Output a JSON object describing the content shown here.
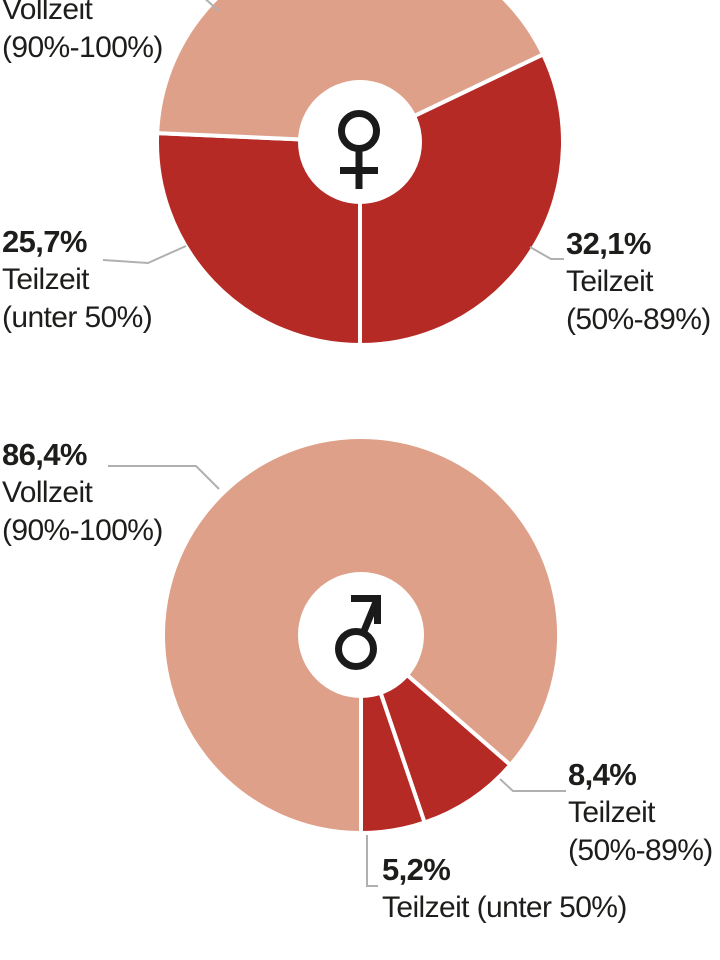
{
  "language": "de",
  "colors": {
    "vollzeit_fill": "#dfa08a",
    "teilzeit_fill": "#b62a25",
    "slice_divider": "#ffffff",
    "leader_line": "#b0b0b0",
    "text": "#1d1d1b",
    "icon_stroke": "#1a1a1a",
    "background": "#ffffff"
  },
  "icons": {
    "female": "female-gender-symbol",
    "male": "male-gender-symbol"
  },
  "chart_data": [
    {
      "type": "pie",
      "variant": "donut",
      "group": "women",
      "center_icon": "female",
      "unit": "%",
      "slice_order": "clockwise from bottom (6 o'clock divider)",
      "slices": [
        {
          "name": "Teilzeit (unter 50%)",
          "value": 25.7,
          "display": "25,7%",
          "color": "#b62a25",
          "label_lines": [
            "Teilzeit",
            "(unter 50%)"
          ]
        },
        {
          "name": "Vollzeit (90%-100%)",
          "value": 42.2,
          "display": "",
          "note": "percentage text cut off at top edge of image; only label lines visible",
          "color": "#dfa08a",
          "label_lines": [
            "Vollzeit",
            "(90%-100%)"
          ]
        },
        {
          "name": "Teilzeit (50%-89%)",
          "value": 32.1,
          "display": "32,1%",
          "color": "#b62a25",
          "label_lines": [
            "Teilzeit",
            "(50%-89%)"
          ]
        }
      ]
    },
    {
      "type": "pie",
      "variant": "donut",
      "group": "men",
      "center_icon": "male",
      "unit": "%",
      "slice_order": "clockwise from bottom (6 o'clock divider)",
      "slices": [
        {
          "name": "Vollzeit (90%-100%)",
          "value": 86.4,
          "display": "86,4%",
          "color": "#dfa08a",
          "label_lines": [
            "Vollzeit",
            "(90%-100%)"
          ]
        },
        {
          "name": "Teilzeit (50%-89%)",
          "value": 8.4,
          "display": "8,4%",
          "color": "#b62a25",
          "label_lines": [
            "Teilzeit",
            "(50%-89%)"
          ]
        },
        {
          "name": "Teilzeit (unter 50%)",
          "value": 5.2,
          "display": "5,2%",
          "color": "#b62a25",
          "label_lines": [
            "Teilzeit (unter 50%)"
          ]
        }
      ]
    }
  ]
}
